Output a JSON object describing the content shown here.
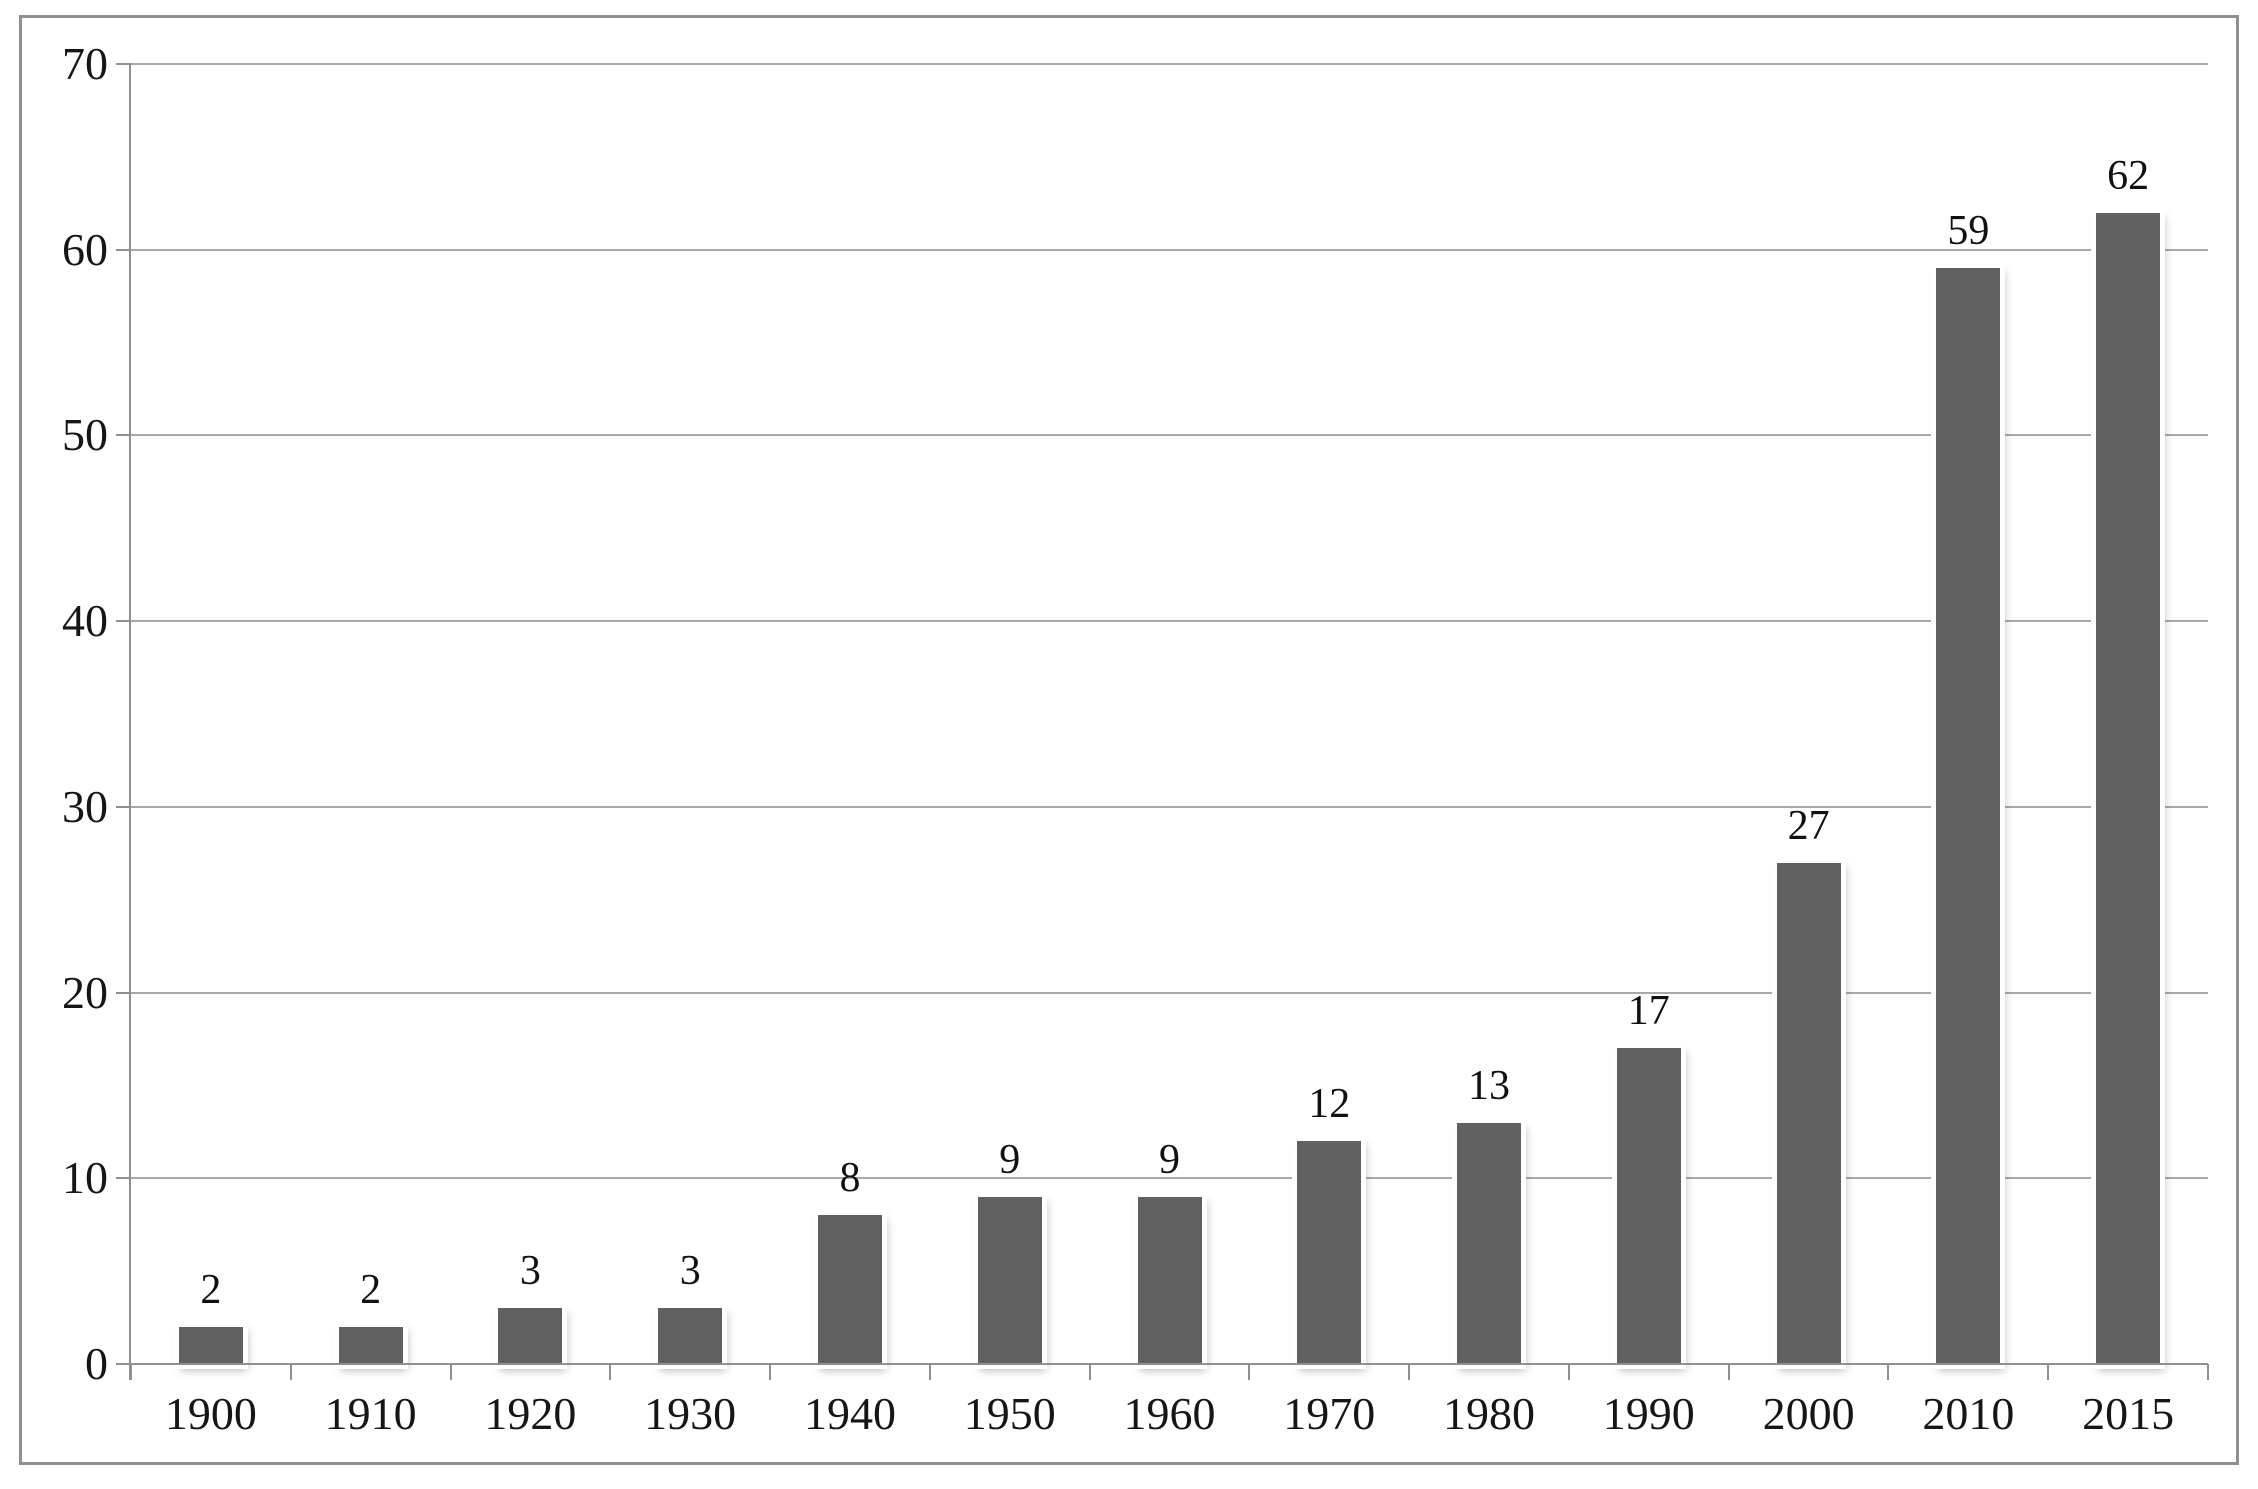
{
  "chart_data": {
    "type": "bar",
    "title": "",
    "xlabel": "",
    "ylabel": "",
    "categories": [
      "1900",
      "1910",
      "1920",
      "1930",
      "1940",
      "1950",
      "1960",
      "1970",
      "1980",
      "1990",
      "2000",
      "2010",
      "2015"
    ],
    "values": [
      2,
      2,
      3,
      3,
      8,
      9,
      9,
      12,
      13,
      17,
      27,
      59,
      62
    ],
    "data_labels": [
      "2",
      "2",
      "3",
      "3",
      "8",
      "9",
      "9",
      "12",
      "13",
      "17",
      "27",
      "59",
      "62"
    ],
    "ylim": [
      0,
      70
    ],
    "yticks": [
      0,
      10,
      20,
      30,
      40,
      50,
      60,
      70
    ],
    "ytick_labels": [
      "0",
      "10",
      "20",
      "30",
      "40",
      "50",
      "60",
      "70"
    ],
    "grid": true,
    "legend": false,
    "colors": {
      "bar": "#606060",
      "gridline": "#a9a9a9",
      "axis": "#8f8f8f",
      "frame_border": "#8f8f8f",
      "text": "#161616",
      "background": "#ffffff"
    }
  }
}
